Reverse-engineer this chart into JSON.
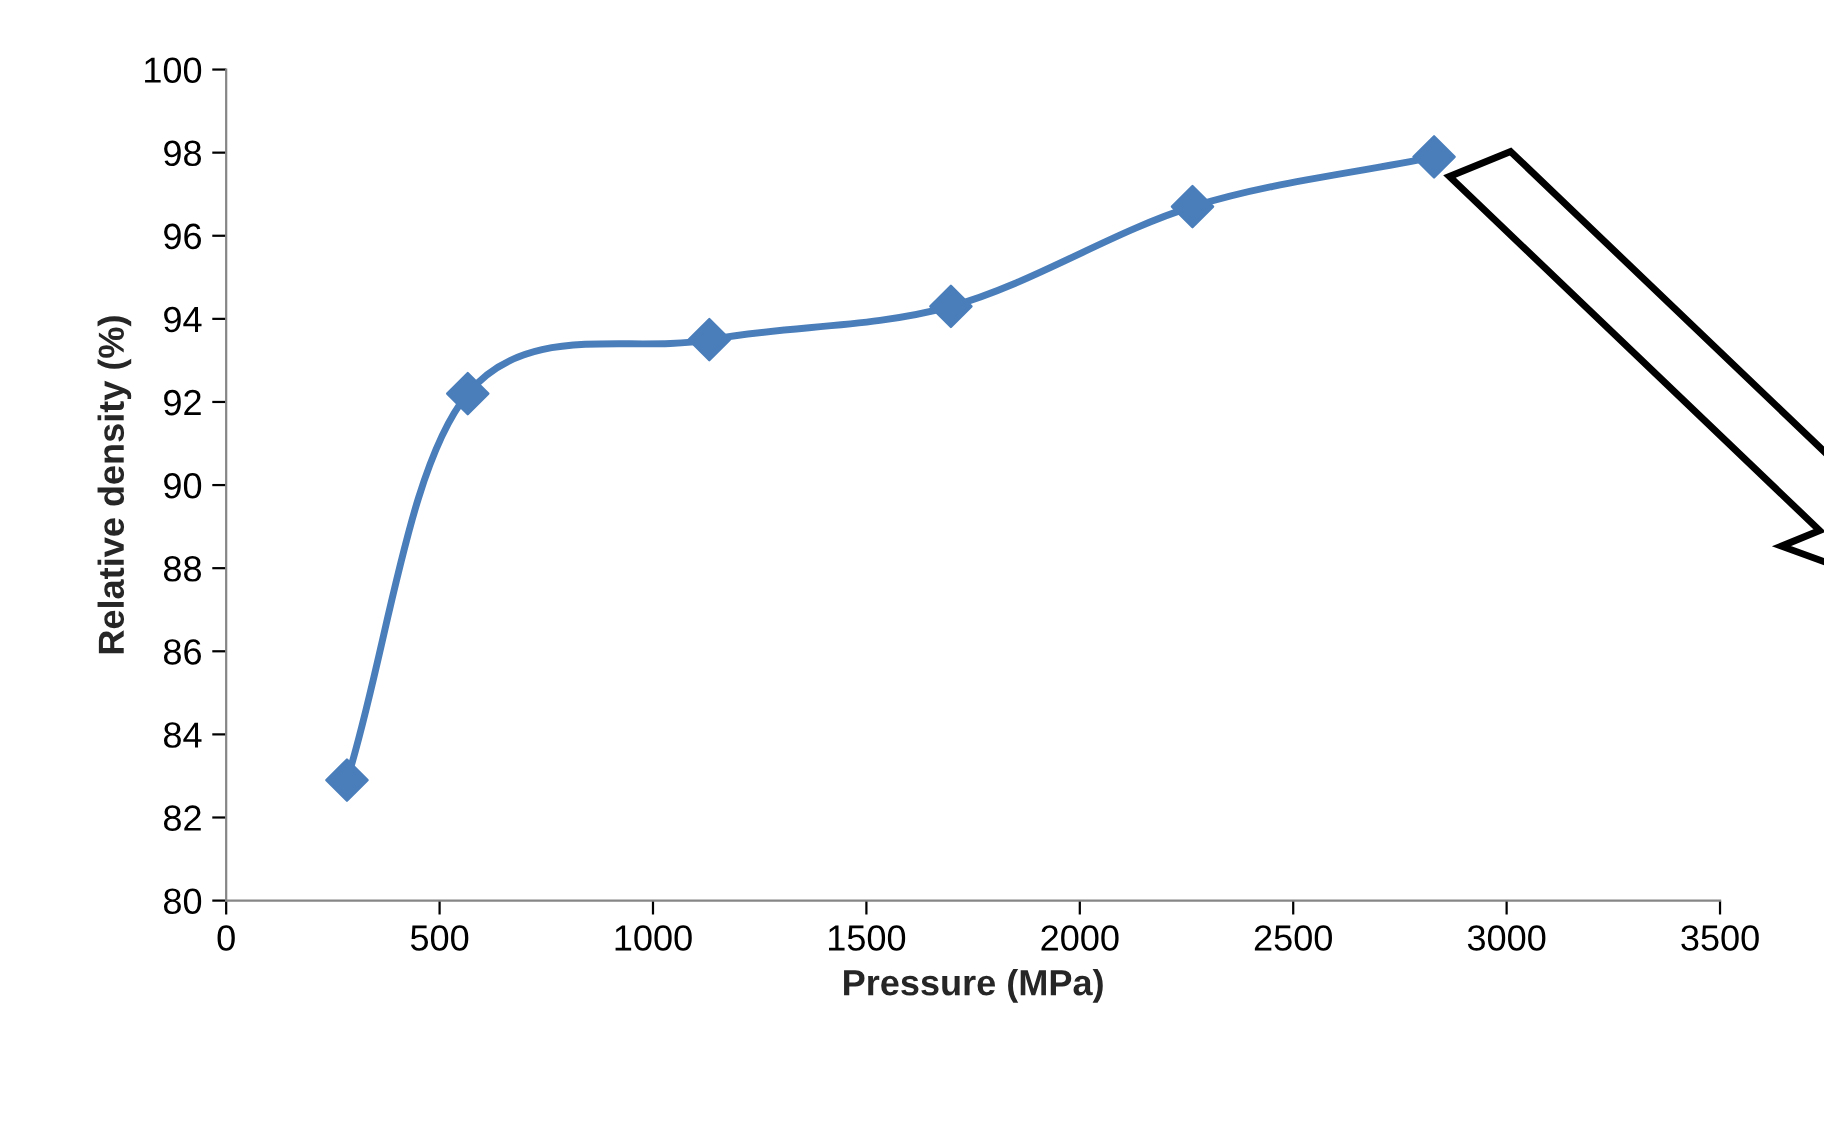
{
  "chart_data": {
    "type": "line",
    "xlabel": "Pressure (MPa)",
    "ylabel": "Relative density (%)",
    "x": [
      283,
      566,
      1132,
      1698,
      2264,
      2830
    ],
    "series": [
      {
        "color": "#4a7ebb",
        "values": [
          82.9,
          92.2,
          93.5,
          94.3,
          96.7,
          97.9
        ]
      }
    ],
    "xlim": [
      0,
      3500
    ],
    "xticks": [
      0,
      500,
      1000,
      1500,
      2000,
      2500,
      3000,
      3500
    ],
    "ylim": [
      80,
      100
    ],
    "yticks": [
      80,
      82,
      84,
      86,
      88,
      90,
      92,
      94,
      96,
      98,
      100
    ],
    "marker": "diamond",
    "line_style": "solid",
    "grid": false
  }
}
